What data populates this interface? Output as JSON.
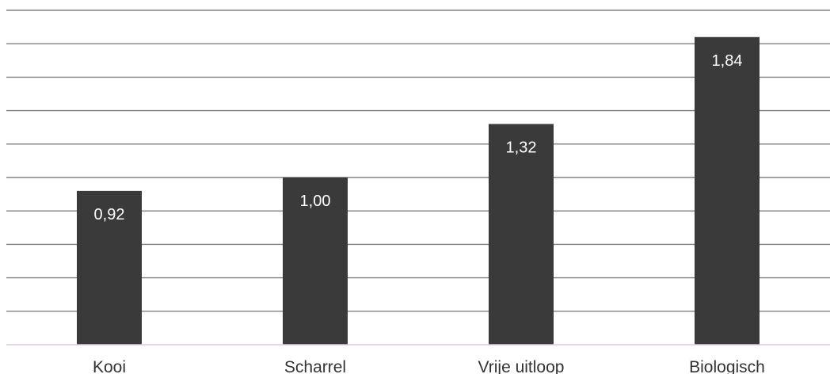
{
  "chart_data": {
    "type": "bar",
    "categories": [
      "Kooi",
      "Scharrel",
      "Vrije uitloop",
      "Biologisch"
    ],
    "values": [
      0.92,
      1.0,
      1.32,
      1.84
    ],
    "data_labels": [
      "0,92",
      "1,00",
      "1,32",
      "1,84"
    ],
    "title": "",
    "xlabel": "",
    "ylabel": "",
    "ylim": [
      0,
      2
    ],
    "grid": true,
    "colors": {
      "bar": "#3a3a3a",
      "grid": "#808080",
      "baseline": "#d9c8e6",
      "label": "#ffffff"
    }
  }
}
